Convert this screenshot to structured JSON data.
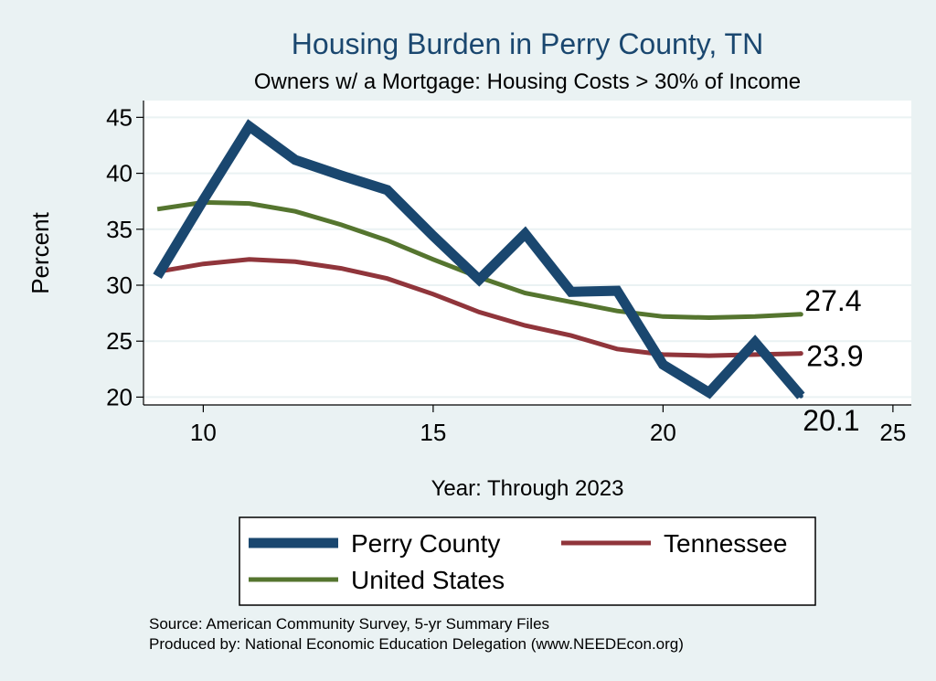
{
  "chart_data": {
    "type": "line",
    "title": "Housing Burden in Perry County, TN",
    "subtitle": "Owners w/ a Mortgage: Housing Costs > 30% of Income",
    "xlabel": "Year: Through 2023",
    "ylabel": "Percent",
    "xlim": [
      8.7,
      25.4
    ],
    "ylim": [
      19.3,
      46.5
    ],
    "x_ticks": [
      "10",
      "15",
      "20",
      "25"
    ],
    "y_ticks": [
      "20",
      "25",
      "30",
      "35",
      "40",
      "45"
    ],
    "grid": true,
    "legend_position": "bottom",
    "series": [
      {
        "name": "Perry County",
        "color": "#1a476f",
        "x": [
          9,
          10,
          11,
          12,
          13,
          14,
          15,
          16,
          17,
          18,
          19,
          20,
          21,
          22,
          23
        ],
        "values": [
          30.8,
          37.6,
          44.2,
          41.2,
          39.8,
          38.5,
          34.4,
          30.5,
          34.6,
          29.4,
          29.5,
          22.9,
          20.4,
          24.9,
          20.1
        ],
        "end_label": "20.1"
      },
      {
        "name": "Tennessee",
        "color": "#90353b",
        "x": [
          9,
          10,
          11,
          12,
          13,
          14,
          15,
          16,
          17,
          18,
          19,
          20,
          21,
          22,
          23
        ],
        "values": [
          31.2,
          31.9,
          32.3,
          32.1,
          31.5,
          30.6,
          29.2,
          27.6,
          26.4,
          25.5,
          24.3,
          23.8,
          23.7,
          23.8,
          23.9
        ],
        "end_label": "23.9"
      },
      {
        "name": "United States",
        "color": "#55752f",
        "x": [
          9,
          10,
          11,
          12,
          13,
          14,
          15,
          16,
          17,
          18,
          19,
          20,
          21,
          22,
          23
        ],
        "values": [
          36.8,
          37.4,
          37.3,
          36.6,
          35.4,
          34.0,
          32.3,
          30.7,
          29.3,
          28.5,
          27.7,
          27.2,
          27.1,
          27.2,
          27.4
        ],
        "end_label": "27.4"
      }
    ]
  },
  "footer": {
    "source": "Source: American Community Survey, 5-yr Summary Files",
    "produced": "Produced by: National Economic Education Delegation (www.NEEDEcon.org)"
  }
}
